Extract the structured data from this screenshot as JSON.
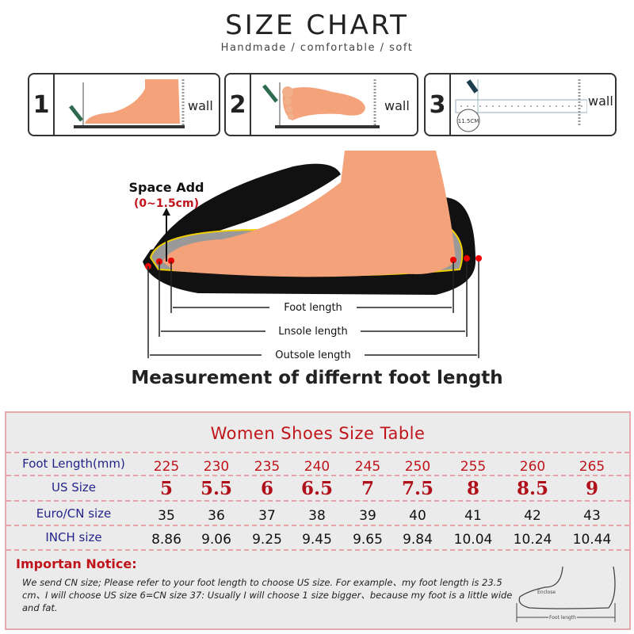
{
  "header": {
    "title": "SIZE CHART",
    "subtitle": "Handmade / comfortable / soft"
  },
  "steps": [
    {
      "num": "1",
      "wall": "wall"
    },
    {
      "num": "2",
      "wall": "wall"
    },
    {
      "num": "3",
      "wall": "wall",
      "ruler_label": "11.5CM"
    }
  ],
  "diagram": {
    "space_add": "Space Add",
    "space_range": "(0~1.5cm)",
    "foot_length": "Foot length",
    "insole_length": "Lnsole length",
    "outsole_length": "Outsole length",
    "caption": "Measurement of differnt foot length"
  },
  "table": {
    "title": "Women Shoes Size Table",
    "rows": [
      {
        "label": "Foot Length(mm)",
        "values": [
          "225",
          "230",
          "235",
          "240",
          "245",
          "250",
          "255",
          "260",
          "265"
        ]
      },
      {
        "label": "US Size",
        "values": [
          "5",
          "5.5",
          "6",
          "6.5",
          "7",
          "7.5",
          "8",
          "8.5",
          "9"
        ]
      },
      {
        "label": "Euro/CN size",
        "values": [
          "35",
          "36",
          "37",
          "38",
          "39",
          "40",
          "41",
          "42",
          "43"
        ]
      },
      {
        "label": "INCH size",
        "values": [
          "8.86",
          "9.06",
          "9.25",
          "9.45",
          "9.65",
          "9.84",
          "10.04",
          "10.24",
          "10.44"
        ]
      }
    ],
    "notice_heading": "Importan Notice:",
    "notice_text": "We send CN size; Please refer to your foot length to choose US size. For example、my foot length is 23.5 cm、I will choose US size 6=CN size 37: Usually I will choose 1 size bigger、because my foot is a little wide and fat.",
    "sketch_labels": {
      "enclose": "Enclose",
      "foot_length": "Foot length"
    }
  },
  "colors": {
    "accent_red": "#c0141b",
    "label_blue": "#23238a",
    "foot": "#f4a27a",
    "table_bg": "#ebebeb",
    "table_border": "#e7a9ad"
  }
}
